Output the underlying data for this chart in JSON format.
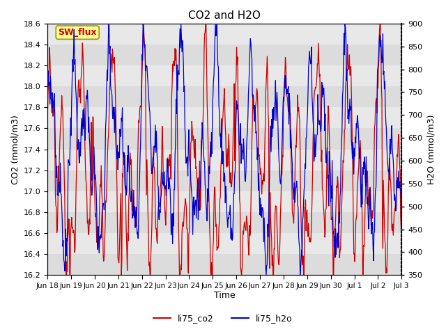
{
  "title": "CO2 and H2O",
  "xlabel": "Time",
  "ylabel_left": "CO2 (mmol/m3)",
  "ylabel_right": "H2O (mmol/m3)",
  "ylim_left": [
    16.2,
    18.6
  ],
  "ylim_right": [
    350,
    900
  ],
  "yticks_left": [
    16.2,
    16.4,
    16.6,
    16.8,
    17.0,
    17.2,
    17.4,
    17.6,
    17.8,
    18.0,
    18.2,
    18.4,
    18.6
  ],
  "yticks_right": [
    350,
    400,
    450,
    500,
    550,
    600,
    650,
    700,
    750,
    800,
    850,
    900
  ],
  "xtick_labels": [
    "Jun 18",
    "Jun 19",
    "Jun 20",
    "Jun 21",
    "Jun 22",
    "Jun 23",
    "Jun 24",
    "Jun 25",
    "Jun 26",
    "Jun 27",
    "Jun 28",
    "Jun 29",
    "Jun 30",
    "Jul 1",
    "Jul 2",
    "Jul 3"
  ],
  "color_co2": "#cc0000",
  "color_h2o": "#0000cc",
  "legend_label_co2": "li75_co2",
  "legend_label_h2o": "li75_h2o",
  "annotation_text": "SW_flux",
  "annotation_color": "#cc0000",
  "annotation_bg": "#ffff99",
  "plot_bg_color": "#e8e8e8",
  "band_color": "#d8d8d8",
  "grid_color": "#c8c8c8",
  "seed": 12345
}
